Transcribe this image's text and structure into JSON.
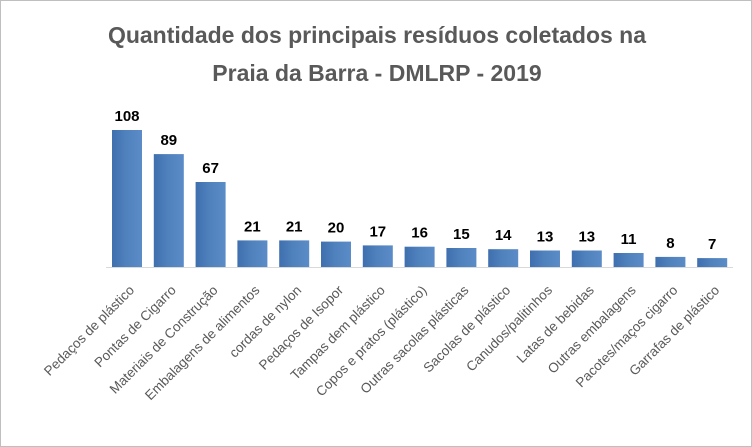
{
  "chart_title": {
    "line1": "Quantidade dos principais resíduos coletados na",
    "line2": "Praia  da Barra  - DMLRP  - 2019"
  },
  "chart_data": {
    "type": "bar",
    "title": "Quantidade dos principais resíduos coletados na Praia  da Barra  - DMLRP  - 2019",
    "xlabel": "",
    "ylabel": "",
    "ylim": [
      0,
      108
    ],
    "grid": false,
    "legend": "none",
    "data_labels": true,
    "bar_color": "#4f81bd",
    "categories": [
      "Pedaços de plástico",
      "Pontas de Cigarro",
      "Materiais de Construção",
      "Embalagens de alimentos",
      "cordas de nylon",
      "Pedaços de Isopor",
      "Tampas dem plástico",
      "Copos e pratos (plástico)",
      "Outras sacolas plásticas",
      "Sacolas de plástico",
      "Canudos/palitinhos",
      "Latas de bebidas",
      "Outras embalagens",
      "Pacotes/maços cigarro",
      "Garrafas de plástico"
    ],
    "values": [
      108,
      89,
      67,
      21,
      21,
      20,
      17,
      16,
      15,
      14,
      13,
      13,
      11,
      8,
      7
    ]
  }
}
